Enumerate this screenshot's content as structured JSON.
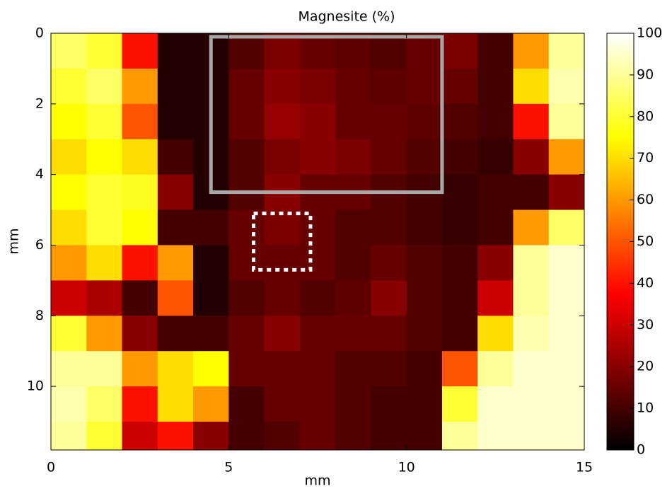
{
  "chart_data": {
    "type": "heatmap",
    "title": "Magnesite (%)",
    "x_label": "mm",
    "y_label": "mm",
    "xlim": [
      0,
      15
    ],
    "ylim": [
      0,
      11.8
    ],
    "xticks": [
      0,
      5,
      10,
      15
    ],
    "yticks": [
      0,
      2,
      4,
      6,
      8,
      10
    ],
    "y_inverted": true,
    "colormap": "hot",
    "clim": [
      0,
      100
    ],
    "colorbar_ticks": [
      0,
      10,
      20,
      30,
      40,
      50,
      60,
      70,
      80,
      90,
      100
    ],
    "z": [
      [
        85,
        80,
        40,
        5,
        5,
        12,
        18,
        15,
        14,
        12,
        15,
        18,
        10,
        60,
        90
      ],
      [
        80,
        85,
        60,
        5,
        5,
        15,
        20,
        18,
        15,
        14,
        15,
        15,
        10,
        70,
        92
      ],
      [
        75,
        80,
        50,
        5,
        5,
        15,
        22,
        20,
        15,
        15,
        14,
        12,
        10,
        40,
        90
      ],
      [
        70,
        75,
        70,
        10,
        5,
        12,
        18,
        20,
        18,
        15,
        12,
        10,
        8,
        20,
        60
      ],
      [
        75,
        80,
        78,
        20,
        5,
        12,
        20,
        15,
        15,
        12,
        10,
        8,
        10,
        10,
        20
      ],
      [
        70,
        80,
        75,
        10,
        10,
        15,
        18,
        15,
        12,
        12,
        10,
        8,
        10,
        60,
        85
      ],
      [
        60,
        70,
        40,
        60,
        5,
        15,
        15,
        15,
        12,
        15,
        12,
        10,
        20,
        90,
        95
      ],
      [
        30,
        25,
        10,
        50,
        5,
        12,
        15,
        12,
        14,
        20,
        12,
        10,
        30,
        90,
        95
      ],
      [
        80,
        60,
        20,
        10,
        10,
        15,
        20,
        15,
        15,
        15,
        12,
        10,
        70,
        92,
        95
      ],
      [
        90,
        90,
        60,
        70,
        75,
        15,
        15,
        15,
        12,
        12,
        10,
        50,
        90,
        95,
        95
      ],
      [
        92,
        85,
        40,
        70,
        60,
        10,
        15,
        15,
        12,
        10,
        10,
        80,
        95,
        95,
        95
      ],
      [
        90,
        80,
        30,
        40,
        20,
        10,
        12,
        15,
        12,
        10,
        10,
        90,
        95,
        95,
        95
      ]
    ],
    "regions": [
      {
        "x": [
          4.5,
          11
        ],
        "y": [
          0.1,
          4.5
        ],
        "color": "#a8a8a8",
        "style": "solid"
      },
      {
        "x": [
          5.7,
          7.3
        ],
        "y": [
          5.1,
          6.7
        ],
        "color": "#ffffff",
        "style": "dotted"
      }
    ]
  }
}
